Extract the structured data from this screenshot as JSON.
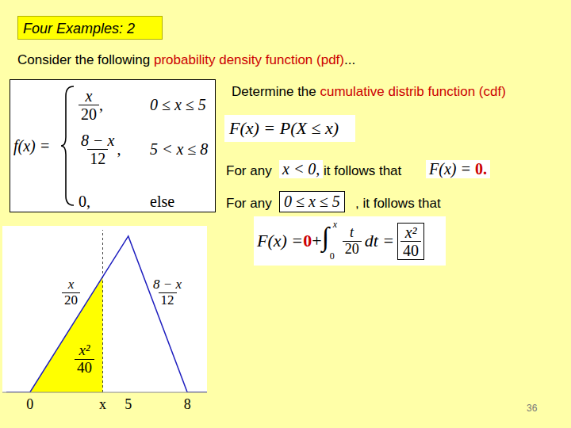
{
  "slide": {
    "title": "Four Examples: 2",
    "intro": [
      {
        "text": "Consider the following "
      },
      {
        "text": "probability density function (pdf)",
        "color": "#cc0000"
      },
      {
        "text": "..."
      }
    ],
    "pdf": {
      "lhs": "f(x) =",
      "cases": [
        {
          "num": "x",
          "den": "20",
          "after": ",",
          "cond": "0 ≤ x ≤ 5"
        },
        {
          "num": "8 − x",
          "den": "12",
          "after": ",",
          "cond": "5 < x ≤ 8"
        },
        {
          "text": "0,",
          "cond": "else"
        }
      ]
    },
    "task": [
      {
        "text": "Determine the "
      },
      {
        "text": "cumulative distrib function (cdf)",
        "color": "#cc0000"
      }
    ],
    "cdf_def": "F(x) = P(X ≤ x)",
    "case1": {
      "lead": "For any",
      "condition": "x < 0,",
      "follow": "it follows that",
      "result": "F(x) = ",
      "value": "0.",
      "value_color": "#cc0000"
    },
    "case2": {
      "lead": "For any",
      "condition": "0 ≤ x ≤ 5",
      "follow": ", it follows that"
    },
    "integral": {
      "lhs": "F(x) = ",
      "zero": "0",
      "zero_color": "#cc0000",
      "plus": " + ",
      "sign": "∫",
      "lower": "0",
      "upper": "x",
      "num": "t",
      "den": "20",
      "tail": "dt =",
      "result_num": "x²",
      "result_den": "40"
    },
    "page": "36"
  },
  "chart_data": {
    "type": "line",
    "series": [
      {
        "type": "area",
        "color": "#ffff00",
        "x": [
          0,
          3.7
        ],
        "values": [
          0,
          0.185
        ]
      },
      {
        "type": "line",
        "color": "#1f1fbf",
        "x": [
          -1.2,
          0,
          5,
          8,
          9
        ],
        "values": [
          0,
          0,
          0.25,
          0,
          0
        ]
      }
    ],
    "xlim": [
      -1.4,
      9
    ],
    "ylim": [
      0,
      0.26
    ],
    "xticks": [
      0,
      {
        "value": 3.7,
        "label": "x"
      },
      5,
      8
    ],
    "tick_labels": "x",
    "annotations": [
      {
        "num": "x",
        "den": "20"
      },
      {
        "num": "8 − x",
        "den": "12"
      },
      {
        "num": "x²",
        "den": "40"
      }
    ]
  }
}
